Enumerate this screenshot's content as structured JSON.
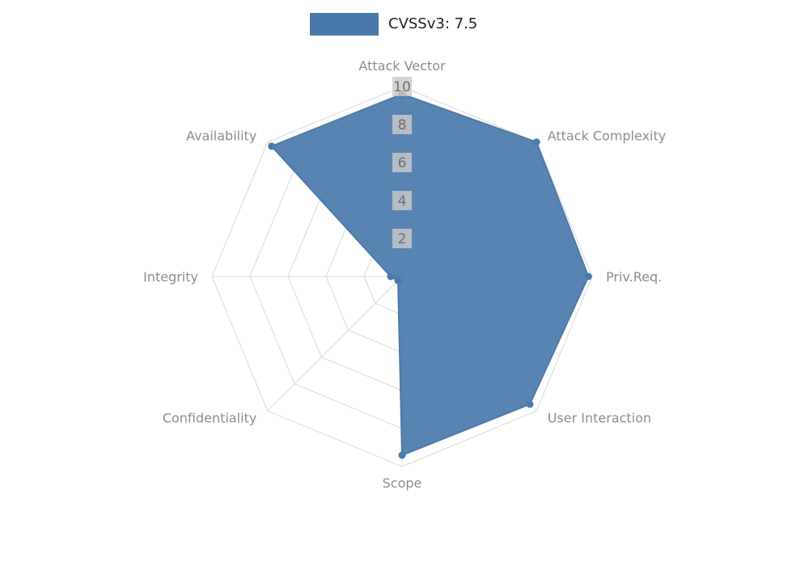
{
  "legend": {
    "label": "CVSSv3: 7.5",
    "swatch_color": "#4a7aab"
  },
  "chart_data": {
    "type": "radar",
    "title": "CVSSv3: 7.5",
    "categories": [
      "Attack Vector",
      "Attack Complexity",
      "Priv.Req.",
      "User Interaction",
      "Scope",
      "Confidentiality",
      "Integrity",
      "Availability"
    ],
    "series": [
      {
        "name": "CVSSv3: 7.5",
        "values": [
          9.6,
          10,
          9.8,
          9.5,
          9.4,
          0.3,
          0.6,
          9.7
        ]
      }
    ],
    "ticks": [
      2,
      4,
      6,
      8,
      10
    ],
    "max": 10,
    "axis_range": [
      0,
      10
    ],
    "grid": true,
    "legend_position": "top-center",
    "colors": {
      "fill": "#4a7aab",
      "grid": "#d8d8d8",
      "tick_box": "#c9c9c9",
      "tick_text": "#6f6f6f",
      "axis_label": "#8c8c8c",
      "legend_text": "#1f1f1f"
    }
  }
}
